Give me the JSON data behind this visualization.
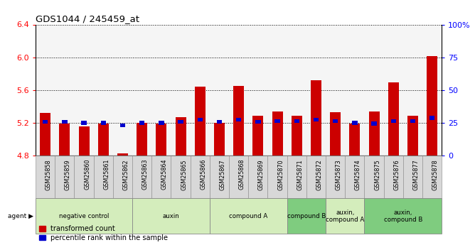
{
  "title": "GDS1044 / 245459_at",
  "samples": [
    "GSM25858",
    "GSM25859",
    "GSM25860",
    "GSM25861",
    "GSM25862",
    "GSM25863",
    "GSM25864",
    "GSM25865",
    "GSM25866",
    "GSM25867",
    "GSM25868",
    "GSM25869",
    "GSM25870",
    "GSM25871",
    "GSM25872",
    "GSM25873",
    "GSM25874",
    "GSM25875",
    "GSM25876",
    "GSM25877",
    "GSM25878"
  ],
  "red_values": [
    5.32,
    5.19,
    5.16,
    5.19,
    4.83,
    5.2,
    5.19,
    5.27,
    5.64,
    5.2,
    5.65,
    5.29,
    5.34,
    5.29,
    5.72,
    5.33,
    5.19,
    5.34,
    5.69,
    5.29,
    6.01
  ],
  "blue_values": [
    5.21,
    5.21,
    5.2,
    5.2,
    5.17,
    5.2,
    5.2,
    5.21,
    5.24,
    5.21,
    5.24,
    5.21,
    5.22,
    5.22,
    5.24,
    5.22,
    5.2,
    5.19,
    5.22,
    5.22,
    5.26
  ],
  "ylim": [
    4.8,
    6.4
  ],
  "yticks": [
    4.8,
    5.2,
    5.6,
    6.0,
    6.4
  ],
  "right_yticks": [
    0,
    25,
    50,
    75,
    100
  ],
  "groups": [
    {
      "label": "negative control",
      "start": 0,
      "end": 5,
      "color": "#d4edbc"
    },
    {
      "label": "auxin",
      "start": 5,
      "end": 9,
      "color": "#d4edbc"
    },
    {
      "label": "compound A",
      "start": 9,
      "end": 13,
      "color": "#d4edbc"
    },
    {
      "label": "compound B",
      "start": 13,
      "end": 15,
      "color": "#7fcc7f"
    },
    {
      "label": "auxin,\ncompound A",
      "start": 15,
      "end": 17,
      "color": "#d4edbc"
    },
    {
      "label": "auxin,\ncompound B",
      "start": 17,
      "end": 21,
      "color": "#7fcc7f"
    }
  ],
  "bar_color": "#cc0000",
  "blue_color": "#0000cc",
  "bg_color": "#f5f5f5",
  "bar_width": 0.55,
  "legend_red": "transformed count",
  "legend_blue": "percentile rank within the sample"
}
